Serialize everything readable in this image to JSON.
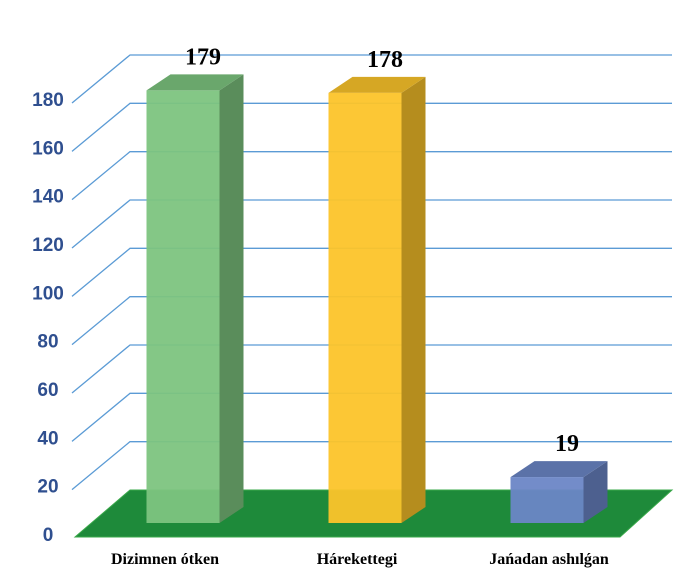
{
  "chart_data": {
    "type": "bar3d",
    "categories": [
      "Dizimnen ótken",
      "Hárekettegi",
      "Jańadan ashılǵan"
    ],
    "values": [
      179,
      178,
      19
    ],
    "colors": [
      "#7dc47f",
      "#fcc42a",
      "#6b86c6"
    ],
    "ylim": [
      0,
      180
    ],
    "yticks": [
      0,
      20,
      40,
      60,
      80,
      100,
      120,
      140,
      160,
      180
    ],
    "grid": true
  }
}
